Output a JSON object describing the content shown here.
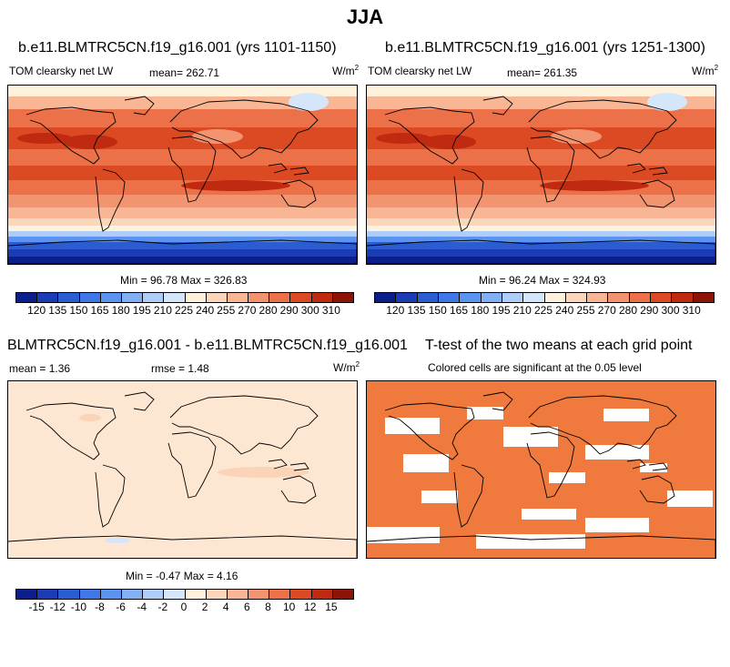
{
  "figure_title": "JJA",
  "panels": [
    {
      "id": "p1",
      "title": "b.e11.BLMTRC5CN.f19_g16.001 (yrs 1101-1150)",
      "left_label": "TOM clearsky net LW",
      "mean_label": "mean= 262.71",
      "units": "W/m",
      "units_sup": "2",
      "minmax": "Min =  96.78 Max = 326.83"
    },
    {
      "id": "p2",
      "title": "b.e11.BLMTRC5CN.f19_g16.001 (yrs 1251-1300)",
      "left_label": "TOM clearsky net LW",
      "mean_label": "mean= 261.35",
      "units": "W/m",
      "units_sup": "2",
      "minmax": "Min =  96.24 Max = 324.93"
    },
    {
      "id": "p3",
      "title": "BLMTRC5CN.f19_g16.001 - b.e11.BLMTRC5CN.f19_g16.001",
      "left_label": "mean =   1.36",
      "mean_label": "rmse =   1.48",
      "units": "W/m",
      "units_sup": "2",
      "minmax": "Min =  -0.47 Max =   4.16"
    },
    {
      "id": "p4",
      "title": "T-test of the two means at each grid point",
      "subtitle": "Colored cells are significant at the 0.05 level"
    }
  ],
  "colorbars": {
    "abs": {
      "colors": [
        "#0a1e8c",
        "#1a3cb4",
        "#2a5cd2",
        "#3f78e6",
        "#5a94f0",
        "#82b0f5",
        "#aecdf8",
        "#d6e6fa",
        "#fff2dc",
        "#fcd6ba",
        "#f8b694",
        "#f39470",
        "#ec7048",
        "#dc4a24",
        "#c02a10",
        "#8c1405"
      ],
      "ticks": [
        "120",
        "135",
        "150",
        "165",
        "180",
        "195",
        "210",
        "225",
        "240",
        "255",
        "270",
        "280",
        "290",
        "300",
        "310"
      ]
    },
    "diff": {
      "colors": [
        "#0a1e8c",
        "#1a3cb4",
        "#2a5cd2",
        "#3f78e6",
        "#5a94f0",
        "#82b0f5",
        "#aecdf8",
        "#d6e6fa",
        "#fff2dc",
        "#fcd6ba",
        "#f8b694",
        "#f39470",
        "#ec7048",
        "#dc4a24",
        "#c02a10",
        "#8c1405"
      ],
      "ticks": [
        "-15",
        "-12",
        "-10",
        "-8",
        "-6",
        "-4",
        "-2",
        "0",
        "2",
        "4",
        "6",
        "8",
        "10",
        "12",
        "15"
      ]
    }
  },
  "chart_data": [
    {
      "type": "heatmap",
      "title": "b.e11.BLMTRC5CN.f19_g16.001 (yrs 1101-1150)",
      "variable": "TOM clearsky net LW",
      "units": "W/m2",
      "mean": 262.71,
      "min": 96.78,
      "max": 326.83,
      "levels": [
        120,
        135,
        150,
        165,
        180,
        195,
        210,
        225,
        240,
        255,
        270,
        280,
        290,
        300,
        310
      ]
    },
    {
      "type": "heatmap",
      "title": "b.e11.BLMTRC5CN.f19_g16.001 (yrs 1251-1300)",
      "variable": "TOM clearsky net LW",
      "units": "W/m2",
      "mean": 261.35,
      "min": 96.24,
      "max": 324.93,
      "levels": [
        120,
        135,
        150,
        165,
        180,
        195,
        210,
        225,
        240,
        255,
        270,
        280,
        290,
        300,
        310
      ]
    },
    {
      "type": "heatmap",
      "title": "BLMTRC5CN.f19_g16.001 - b.e11.BLMTRC5CN.f19_g16.001",
      "units": "W/m2",
      "mean": 1.36,
      "rmse": 1.48,
      "min": -0.47,
      "max": 4.16,
      "levels": [
        -15,
        -12,
        -10,
        -8,
        -6,
        -4,
        -2,
        0,
        2,
        4,
        6,
        8,
        10,
        12,
        15
      ]
    },
    {
      "type": "heatmap",
      "title": "T-test of the two means at each grid point",
      "note": "Colored cells are significant at the 0.05 level",
      "significance_level": 0.05
    }
  ]
}
